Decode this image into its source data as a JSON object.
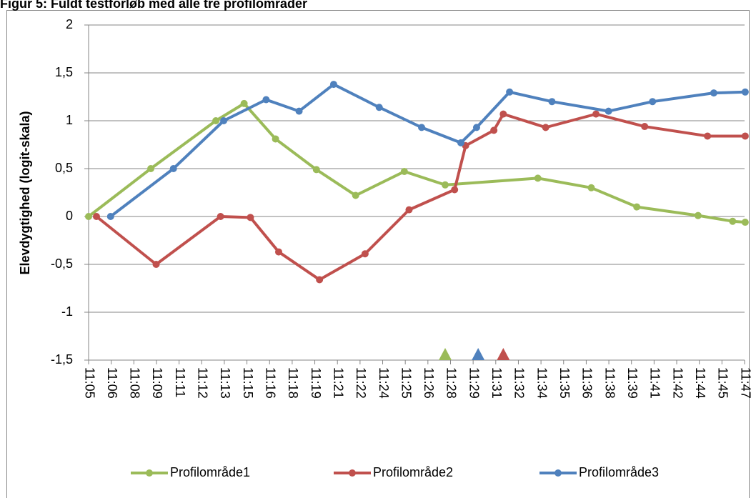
{
  "chart_data": {
    "type": "line",
    "title": "Figur 5: Fuldt testforløb med alle tre profilområder",
    "y_label": "Elevdygtighed (logit-skala)",
    "xlim": [
      665,
      706.76
    ],
    "xticks": [
      {
        "value": 665,
        "label": "11:05"
      },
      {
        "value": 666.44,
        "label": "11:06"
      },
      {
        "value": 667.88,
        "label": "11:08"
      },
      {
        "value": 669.32,
        "label": "11:09"
      },
      {
        "value": 670.76,
        "label": "11:11"
      },
      {
        "value": 672.2,
        "label": "11:12"
      },
      {
        "value": 673.64,
        "label": "11:13"
      },
      {
        "value": 675.08,
        "label": "11:15"
      },
      {
        "value": 676.52,
        "label": "11:16"
      },
      {
        "value": 677.96,
        "label": "11:18"
      },
      {
        "value": 679.4,
        "label": "11:19"
      },
      {
        "value": 680.84,
        "label": "11:21"
      },
      {
        "value": 682.28,
        "label": "11:22"
      },
      {
        "value": 683.72,
        "label": "11:24"
      },
      {
        "value": 685.16,
        "label": "11:25"
      },
      {
        "value": 686.6,
        "label": "11:26"
      },
      {
        "value": 688.04,
        "label": "11:28"
      },
      {
        "value": 689.48,
        "label": "11:29"
      },
      {
        "value": 690.92,
        "label": "11:31"
      },
      {
        "value": 692.36,
        "label": "11:32"
      },
      {
        "value": 693.8,
        "label": "11:34"
      },
      {
        "value": 695.24,
        "label": "11:35"
      },
      {
        "value": 696.68,
        "label": "11:36"
      },
      {
        "value": 698.12,
        "label": "11:38"
      },
      {
        "value": 699.56,
        "label": "11:39"
      },
      {
        "value": 701,
        "label": "11:41"
      },
      {
        "value": 702.44,
        "label": "11:42"
      },
      {
        "value": 703.88,
        "label": "11:44"
      },
      {
        "value": 705.32,
        "label": "11:45"
      },
      {
        "value": 706.76,
        "label": "11:47"
      }
    ],
    "ylim": [
      -1.5,
      2
    ],
    "yticks": [
      {
        "value": -1.5,
        "label": "-1,5"
      },
      -1,
      {
        "value": -0.5,
        "label": "-0,5"
      },
      0,
      {
        "value": 0.5,
        "label": "0,5"
      },
      1,
      {
        "value": 1.5,
        "label": "1,5"
      },
      2
    ],
    "grid": true,
    "legend": "bottom",
    "series": [
      {
        "name": "Profilområde1",
        "color": "#9bbb59",
        "x": [
          665,
          668.96,
          673.1,
          674.9,
          676.9,
          679.5,
          682.0,
          685.1,
          687.7,
          693.6,
          697.0,
          699.9,
          703.8,
          706.0,
          706.8
        ],
        "values": [
          0,
          0.5,
          1.0,
          1.18,
          0.81,
          0.49,
          0.22,
          0.47,
          0.33,
          0.4,
          0.3,
          0.1,
          0.01,
          -0.05,
          -0.06
        ]
      },
      {
        "name": "Profilområde2",
        "color": "#c0504d",
        "x": [
          665.5,
          669.3,
          673.4,
          675.3,
          677.1,
          679.7,
          682.6,
          685.4,
          688.3,
          689.0,
          690.8,
          691.4,
          694.1,
          697.3,
          700.4,
          704.4,
          706.8
        ],
        "values": [
          0,
          -0.5,
          0,
          -0.01,
          -0.37,
          -0.66,
          -0.39,
          0.07,
          0.28,
          0.74,
          0.9,
          1.07,
          0.93,
          1.07,
          0.94,
          0.84,
          0.84
        ]
      },
      {
        "name": "Profilområde3",
        "color": "#4f81bd",
        "x": [
          666.4,
          670.4,
          673.6,
          676.3,
          678.4,
          680.6,
          683.5,
          686.2,
          688.7,
          689.7,
          691.8,
          694.5,
          698.1,
          700.9,
          704.8,
          706.8
        ],
        "values": [
          0,
          0.5,
          1.0,
          1.22,
          1.1,
          1.38,
          1.14,
          0.93,
          0.77,
          0.93,
          1.3,
          1.2,
          1.1,
          1.2,
          1.29,
          1.3
        ]
      }
    ],
    "end_markers": [
      {
        "x": 687.7,
        "color": "#9bbb59"
      },
      {
        "x": 689.8,
        "color": "#4f81bd"
      },
      {
        "x": 691.4,
        "color": "#c0504d"
      }
    ]
  }
}
